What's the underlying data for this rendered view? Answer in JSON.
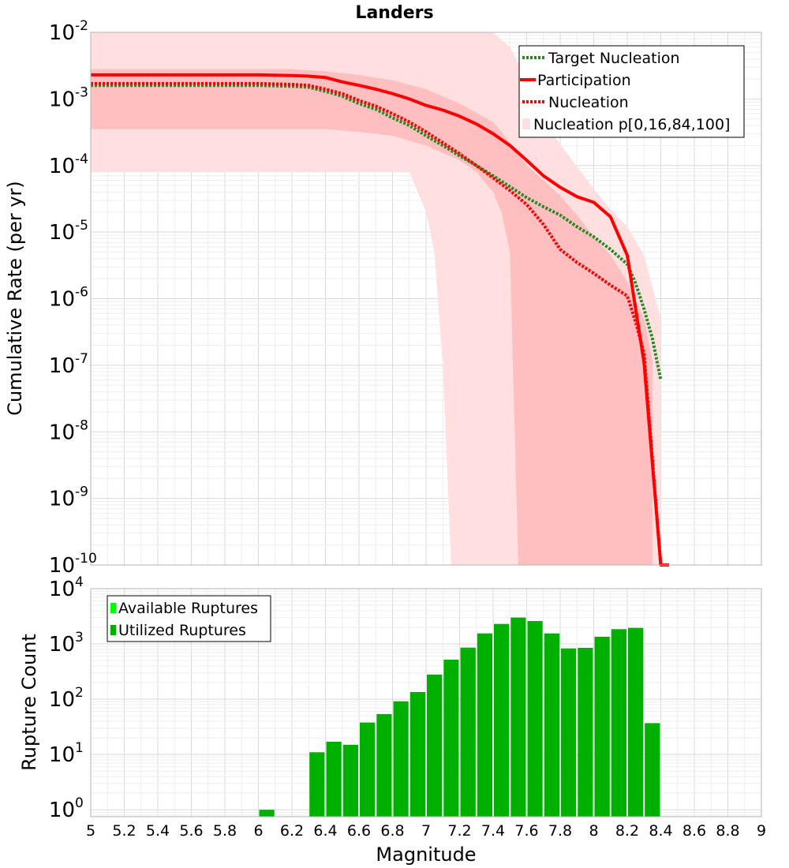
{
  "colors": {
    "green_bar": "#00b000",
    "bright_green": "#00ff00",
    "red": "#ff0000",
    "green_line": "#228b22",
    "band_light": "#ffdfe0",
    "band_dark": "#ffbfc0",
    "grid": "#e6e6e6",
    "frame": "#b3b3b3"
  },
  "chart_data": [
    {
      "type": "line",
      "title": "Landers",
      "xlabel": "",
      "ylabel": "Cumulative Rate (per yr)",
      "xlim": [
        5,
        9
      ],
      "ylim": [
        1e-10,
        0.01
      ],
      "yscale": "log",
      "grid": true,
      "y_ticks": [
        {
          "base": "10",
          "exp": "-2",
          "value": 0.01
        },
        {
          "base": "10",
          "exp": "-3",
          "value": 0.001
        },
        {
          "base": "10",
          "exp": "-4",
          "value": 0.0001
        },
        {
          "base": "10",
          "exp": "-5",
          "value": 1e-05
        },
        {
          "base": "10",
          "exp": "-6",
          "value": 1e-06
        },
        {
          "base": "10",
          "exp": "-7",
          "value": 1e-07
        },
        {
          "base": "10",
          "exp": "-8",
          "value": 1e-08
        },
        {
          "base": "10",
          "exp": "-9",
          "value": 1e-09
        },
        {
          "base": "10",
          "exp": "-10",
          "value": 1e-10
        }
      ],
      "legend_position": "top-right",
      "legend": [
        {
          "label": "Target Nucleation",
          "style": "dotted",
          "color": "#228b22"
        },
        {
          "label": "Participation",
          "style": "solid",
          "color": "#ff0000"
        },
        {
          "label": "Nucleation",
          "style": "dotted",
          "color": "#ff0000"
        },
        {
          "label": "Nucleation p[0,16,84,100]",
          "style": "band",
          "color": "#ffdfe0"
        }
      ],
      "series": [
        {
          "name": "Participation",
          "style": "solid",
          "x": [
            5.0,
            5.2,
            5.4,
            5.6,
            5.8,
            6.0,
            6.2,
            6.3,
            6.4,
            6.5,
            6.6,
            6.7,
            6.8,
            6.9,
            7.0,
            7.1,
            7.2,
            7.3,
            7.4,
            7.5,
            7.6,
            7.7,
            7.8,
            7.9,
            8.0,
            8.1,
            8.2,
            8.3,
            8.4,
            8.45
          ],
          "y": [
            0.0023,
            0.0023,
            0.0023,
            0.0023,
            0.0023,
            0.0023,
            0.00225,
            0.0022,
            0.0021,
            0.0018,
            0.0016,
            0.0014,
            0.0012,
            0.001,
            0.0008,
            0.00068,
            0.00055,
            0.00042,
            0.0003,
            0.0002,
            0.00012,
            7e-05,
            4.7e-05,
            3.4e-05,
            2.8e-05,
            1.7e-05,
            4.5e-06,
            1.1e-07,
            1e-10,
            1e-10
          ]
        },
        {
          "name": "Nucleation",
          "style": "dotted",
          "x": [
            5.0,
            5.2,
            5.4,
            5.6,
            5.8,
            6.0,
            6.2,
            6.3,
            6.4,
            6.5,
            6.6,
            6.7,
            6.8,
            6.9,
            7.0,
            7.1,
            7.2,
            7.3,
            7.4,
            7.5,
            7.6,
            7.7,
            7.8,
            7.9,
            8.0,
            8.1,
            8.2,
            8.25,
            8.3,
            8.4,
            8.45
          ],
          "y": [
            0.0017,
            0.0017,
            0.0017,
            0.0017,
            0.0017,
            0.0017,
            0.00165,
            0.0016,
            0.0014,
            0.0012,
            0.00095,
            0.00078,
            0.0006,
            0.00045,
            0.00032,
            0.00022,
            0.00015,
            0.0001,
            6.5e-05,
            4.2e-05,
            2.6e-05,
            1.3e-05,
            5.5e-06,
            3.5e-06,
            2.4e-06,
            1.6e-06,
            1.1e-06,
            4.5e-07,
            1.5e-07,
            1e-10,
            1e-10
          ]
        },
        {
          "name": "Target Nucleation",
          "style": "dotted",
          "x": [
            5.0,
            5.2,
            5.4,
            5.6,
            5.8,
            6.0,
            6.2,
            6.3,
            6.4,
            6.5,
            6.6,
            6.7,
            6.8,
            6.9,
            7.0,
            7.1,
            7.2,
            7.3,
            7.4,
            7.5,
            7.6,
            7.7,
            7.8,
            7.9,
            8.0,
            8.1,
            8.2,
            8.25,
            8.3,
            8.35,
            8.4
          ],
          "y": [
            0.0016,
            0.0016,
            0.0016,
            0.0016,
            0.0016,
            0.0016,
            0.00155,
            0.0015,
            0.0013,
            0.0011,
            0.00085,
            0.0007,
            0.00052,
            0.0004,
            0.00028,
            0.0002,
            0.00014,
            0.0001,
            7e-05,
            4.8e-05,
            3.3e-05,
            2.4e-05,
            1.8e-05,
            1.2e-05,
            8.5e-06,
            5.5e-06,
            3.3e-06,
            1.7e-06,
            7e-07,
            2.5e-07,
            6e-08
          ]
        }
      ],
      "bands": [
        {
          "name": "Nucleation p[0,100]",
          "x": [
            5.0,
            5.2,
            5.4,
            5.6,
            5.8,
            6.0,
            6.2,
            6.4,
            6.5,
            6.6,
            6.7,
            6.8,
            6.9,
            7.0,
            7.05,
            7.1,
            7.15,
            7.2,
            7.3,
            7.4,
            7.5,
            7.6,
            7.7,
            7.8,
            7.9,
            8.0,
            8.1,
            8.2,
            8.3,
            8.35,
            8.4
          ],
          "lower": [
            8e-05,
            8e-05,
            8e-05,
            8e-05,
            8e-05,
            8e-05,
            8e-05,
            8e-05,
            8e-05,
            8e-05,
            8e-05,
            8e-05,
            8e-05,
            2e-05,
            5e-06,
            1e-07,
            1e-10,
            1e-10,
            1e-10,
            1e-10,
            1e-10,
            1e-10,
            1e-10,
            1e-10,
            1e-10,
            1e-10,
            1e-10,
            1e-10,
            1e-10,
            1e-10,
            1e-10
          ],
          "upper": [
            0.01,
            0.01,
            0.01,
            0.01,
            0.01,
            0.01,
            0.01,
            0.01,
            0.01,
            0.01,
            0.01,
            0.01,
            0.01,
            0.01,
            0.01,
            0.01,
            0.01,
            0.01,
            0.01,
            0.01,
            0.006,
            0.002,
            0.00045,
            0.00021,
            9.5e-05,
            4.5e-05,
            2.2e-05,
            1.2e-05,
            4.5e-06,
            1.5e-06,
            5e-07
          ]
        },
        {
          "name": "Nucleation p[16,84]",
          "x": [
            5.0,
            5.2,
            5.4,
            5.6,
            5.8,
            6.0,
            6.2,
            6.4,
            6.6,
            6.8,
            7.0,
            7.2,
            7.3,
            7.4,
            7.45,
            7.5,
            7.55,
            7.6,
            7.7,
            7.8,
            7.9,
            8.0,
            8.1,
            8.2,
            8.3,
            8.35
          ],
          "lower": [
            0.00035,
            0.00035,
            0.00035,
            0.00035,
            0.00035,
            0.00035,
            0.00035,
            0.00035,
            0.00032,
            0.00028,
            0.0002,
            0.00012,
            8e-05,
            4e-05,
            2e-05,
            5e-06,
            1e-10,
            1e-10,
            1e-10,
            1e-10,
            1e-10,
            1e-10,
            1e-10,
            1e-10,
            1e-10,
            1e-10
          ],
          "upper": [
            0.0028,
            0.0028,
            0.0028,
            0.0028,
            0.0028,
            0.0028,
            0.0028,
            0.0026,
            0.0023,
            0.0019,
            0.0014,
            0.00085,
            0.00062,
            0.00045,
            0.00032,
            0.00022,
            0.00015,
            0.0001,
            6e-05,
            3.5e-05,
            1.8e-05,
            8.5e-06,
            4.5e-06,
            1.8e-06,
            5e-07,
            1.2e-07
          ]
        }
      ]
    },
    {
      "type": "bar",
      "title": "",
      "xlabel": "Magnitude",
      "ylabel": "Rupture Count",
      "xlim": [
        5,
        9
      ],
      "ylim": [
        0.75,
        10000
      ],
      "yscale": "log",
      "grid": true,
      "x_ticks": [
        "5",
        "5.2",
        "5.4",
        "5.6",
        "5.8",
        "6",
        "6.2",
        "6.4",
        "6.6",
        "6.8",
        "7",
        "7.2",
        "7.4",
        "7.6",
        "7.8",
        "8",
        "8.2",
        "8.4",
        "8.6",
        "8.8",
        "9"
      ],
      "y_ticks": [
        {
          "base": "10",
          "exp": "4",
          "value": 10000
        },
        {
          "base": "10",
          "exp": "3",
          "value": 1000
        },
        {
          "base": "10",
          "exp": "2",
          "value": 100
        },
        {
          "base": "10",
          "exp": "1",
          "value": 10
        },
        {
          "base": "10",
          "exp": "0",
          "value": 1
        }
      ],
      "legend_position": "top-left",
      "legend": [
        {
          "label": "Available Ruptures",
          "color": "#00ff00"
        },
        {
          "label": "Utilized Ruptures",
          "color": "#00b000"
        }
      ],
      "bin_width": 0.1,
      "series": [
        {
          "name": "Utilized Ruptures",
          "x": [
            6.05,
            6.35,
            6.45,
            6.55,
            6.65,
            6.75,
            6.85,
            6.95,
            7.05,
            7.15,
            7.25,
            7.35,
            7.45,
            7.55,
            7.65,
            7.75,
            7.85,
            7.95,
            8.05,
            8.15,
            8.25,
            8.35
          ],
          "values": [
            1,
            11,
            17,
            15,
            38,
            54,
            92,
            135,
            280,
            520,
            860,
            1550,
            2300,
            3000,
            2600,
            1550,
            830,
            850,
            1350,
            1850,
            1950,
            37
          ]
        }
      ]
    }
  ]
}
